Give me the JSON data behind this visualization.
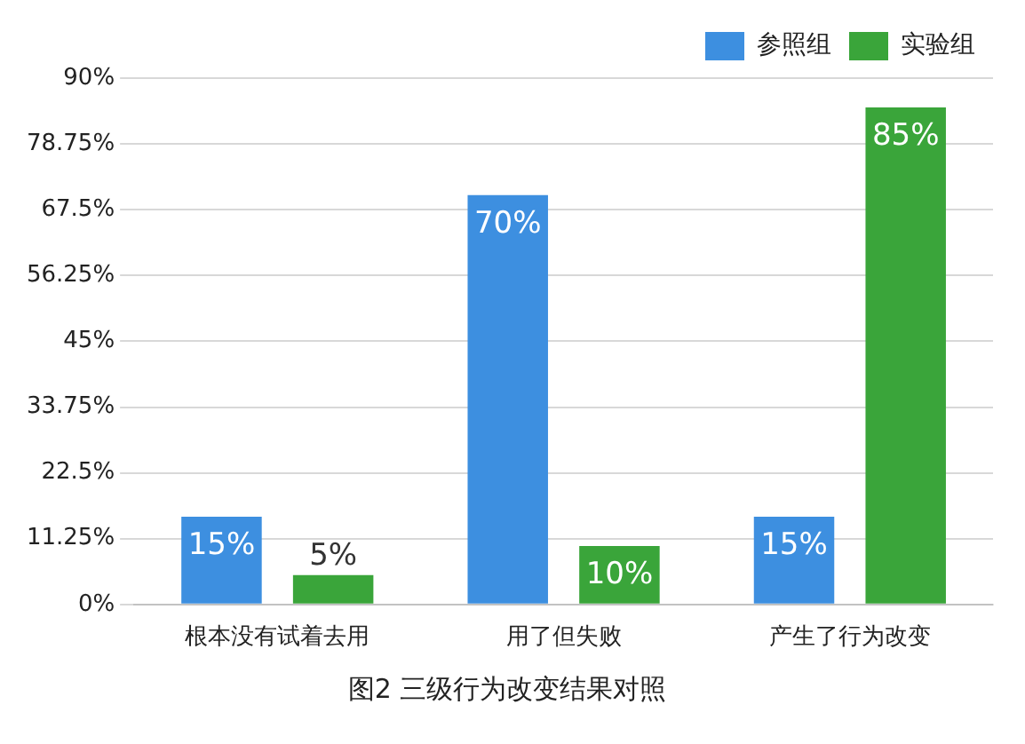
{
  "chart_data": {
    "type": "bar",
    "title": "图2 三级行为改变结果对照",
    "categories": [
      "根本没有试着去用",
      "用了但失败",
      "产生了行为改变"
    ],
    "series": [
      {
        "name": "参照组",
        "color": "#3d8fe0",
        "values": [
          15,
          70,
          15
        ],
        "value_labels": [
          "15%",
          "70%",
          "15%"
        ]
      },
      {
        "name": "实验组",
        "color": "#3aa53a",
        "values": [
          5,
          10,
          85
        ],
        "value_labels": [
          "5%",
          "10%",
          "85%"
        ]
      }
    ],
    "ylim": [
      0,
      90
    ],
    "yticks": [
      {
        "value": 0,
        "label": "0%"
      },
      {
        "value": 11.25,
        "label": "11.25%"
      },
      {
        "value": 22.5,
        "label": "22.5%"
      },
      {
        "value": 33.75,
        "label": "33.75%"
      },
      {
        "value": 45,
        "label": "45%"
      },
      {
        "value": 56.25,
        "label": "56.25%"
      },
      {
        "value": 67.5,
        "label": "67.5%"
      },
      {
        "value": 78.75,
        "label": "78.75%"
      },
      {
        "value": 90,
        "label": "90%"
      }
    ],
    "grid": "y",
    "legend": "top right"
  }
}
